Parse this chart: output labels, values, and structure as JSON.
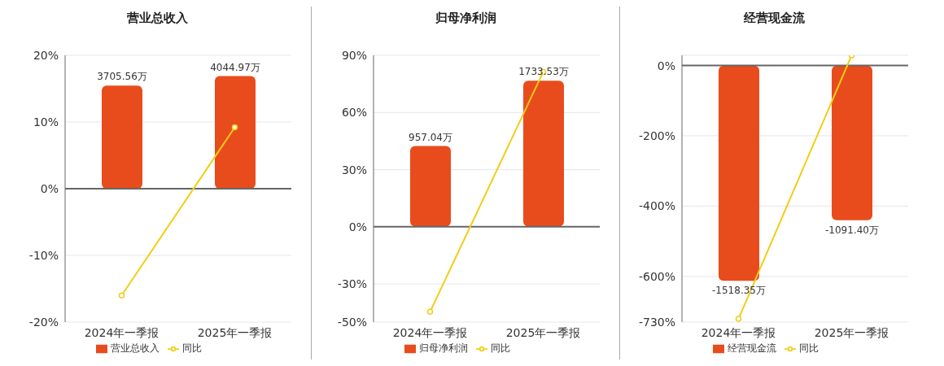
{
  "chart_data": [
    {
      "type": "bar",
      "title": "营业总收入",
      "categories": [
        "2024年一季报",
        "2025年一季报"
      ],
      "series": [
        {
          "name": "营业总收入",
          "axis": "y2",
          "color": "#e84c1d",
          "values": [
            3705.56,
            4044.97
          ],
          "value_labels": [
            "3705.56万",
            "4044.97万"
          ]
        },
        {
          "name": "同比",
          "type": "line",
          "color": "#f2cd16",
          "values": [
            -16.0,
            9.2
          ]
        }
      ],
      "ylim": [
        -20,
        20
      ],
      "yticks": [
        {
          "value": -20,
          "label": "-20%"
        },
        {
          "value": -10,
          "label": "-10%"
        },
        {
          "value": 0,
          "label": "0%"
        },
        {
          "value": 10,
          "label": "10%"
        },
        {
          "value": 20,
          "label": "20%"
        }
      ],
      "y2lim": [
        -4790,
        4790
      ],
      "grid": "y",
      "legend": "bottom",
      "marker": "circle"
    },
    {
      "type": "bar",
      "title": "归母净利润",
      "categories": [
        "2024年一季报",
        "2025年一季报"
      ],
      "series": [
        {
          "name": "归母净利润",
          "axis": "y2",
          "color": "#e84c1d",
          "values": [
            957.04,
            1733.53
          ],
          "value_labels": [
            "957.04万",
            "1733.53万"
          ]
        },
        {
          "name": "同比",
          "type": "line",
          "color": "#f2cd16",
          "values": [
            -44.6,
            81.3
          ]
        }
      ],
      "ylim": [
        -50,
        90
      ],
      "yticks": [
        {
          "value": -50,
          "label": "-50%"
        },
        {
          "value": -30,
          "label": "-30%"
        },
        {
          "value": 0,
          "label": "0%"
        },
        {
          "value": 30,
          "label": "30%"
        },
        {
          "value": 60,
          "label": "60%"
        },
        {
          "value": 90,
          "label": "90%"
        }
      ],
      "y2lim": [
        -1137,
        2037
      ],
      "grid": "y",
      "legend": "bottom",
      "marker": "circle"
    },
    {
      "type": "bar",
      "title": "经营现金流",
      "categories": [
        "2024年一季报",
        "2025年一季报"
      ],
      "series": [
        {
          "name": "经营现金流",
          "axis": "y2",
          "color": "#e84c1d",
          "values": [
            -1518.35,
            -1091.4
          ],
          "value_labels": [
            "-1518.35万",
            "-1091.40万"
          ]
        },
        {
          "name": "同比",
          "type": "line",
          "color": "#f2cd16",
          "values": [
            -721,
            29
          ]
        }
      ],
      "ylim": [
        -730,
        29
      ],
      "yticks": [
        {
          "value": -730,
          "label": "-730%"
        },
        {
          "value": -600,
          "label": "-600%"
        },
        {
          "value": -400,
          "label": "-400%"
        },
        {
          "value": -200,
          "label": "-200%"
        },
        {
          "value": 0,
          "label": "0%"
        }
      ],
      "y2lim": [
        -1810,
        73
      ],
      "grid": "y",
      "legend": "bottom",
      "marker": "circle"
    }
  ]
}
